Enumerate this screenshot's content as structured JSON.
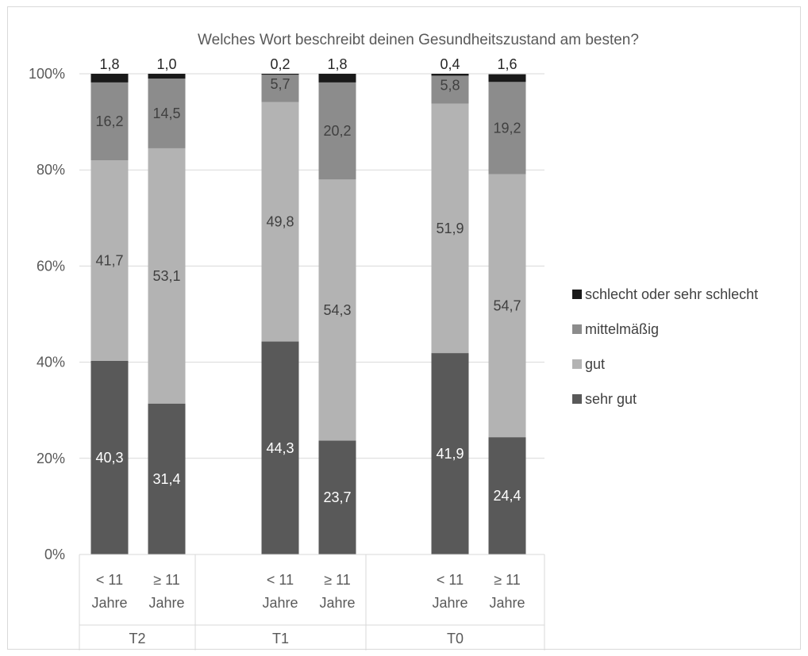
{
  "chart_data": {
    "type": "bar",
    "stacked": true,
    "percent": true,
    "title": "Welches Wort beschreibt deinen Gesundheitszustand am besten?",
    "ylim": [
      0,
      100
    ],
    "yticks": [
      "0%",
      "20%",
      "40%",
      "60%",
      "80%",
      "100%"
    ],
    "ytick_values": [
      0,
      20,
      40,
      60,
      80,
      100
    ],
    "grid": true,
    "legend_position": "right",
    "groups": [
      {
        "label": "T2",
        "categories": [
          [
            "< 11",
            "Jahre"
          ],
          [
            "≥ 11",
            "Jahre"
          ]
        ]
      },
      {
        "label": "T1",
        "categories": [
          [
            "< 11",
            "Jahre"
          ],
          [
            "≥ 11",
            "Jahre"
          ]
        ]
      },
      {
        "label": "T0",
        "categories": [
          [
            "< 11",
            "Jahre"
          ],
          [
            "≥ 11",
            "Jahre"
          ]
        ]
      }
    ],
    "series": [
      {
        "name": "sehr gut",
        "color": "#595959",
        "label_color": "#ffffff",
        "values": [
          40.3,
          31.4,
          44.3,
          23.7,
          41.9,
          24.4
        ],
        "labels": [
          "40,3",
          "31,4",
          "44,3",
          "23,7",
          "41,9",
          "24,4"
        ]
      },
      {
        "name": "gut",
        "color": "#b3b3b3",
        "label_color": "#404040",
        "values": [
          41.7,
          53.1,
          49.8,
          54.3,
          51.9,
          54.7
        ],
        "labels": [
          "41,7",
          "53,1",
          "49,8",
          "54,3",
          "51,9",
          "54,7"
        ]
      },
      {
        "name": "mittelmäßig",
        "color": "#8c8c8c",
        "label_color": "#404040",
        "values": [
          16.2,
          14.5,
          5.7,
          20.2,
          5.8,
          19.2
        ],
        "labels": [
          "16,2",
          "14,5",
          "5,7",
          "20,2",
          "5,8",
          "19,2"
        ]
      },
      {
        "name": "schlecht oder sehr schlecht",
        "color": "#1a1a1a",
        "label_color": "#262626",
        "values": [
          1.8,
          1.0,
          0.2,
          1.8,
          0.4,
          1.6
        ],
        "labels": [
          "1,8",
          "1,0",
          "0,2",
          "1,8",
          "0,4",
          "1,6"
        ]
      }
    ],
    "legend_order": [
      "schlecht oder sehr schlecht",
      "mittelmäßig",
      "gut",
      "sehr gut"
    ]
  }
}
